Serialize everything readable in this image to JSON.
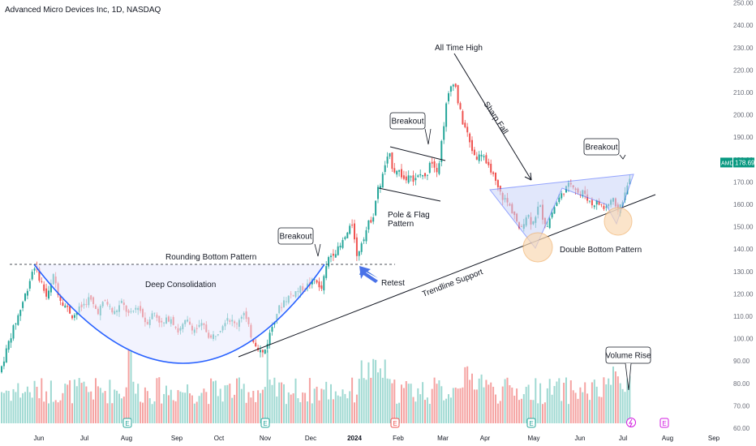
{
  "header": {
    "symbol_title": "Advanced Micro Devices Inc, 1D, NASDAQ"
  },
  "colors": {
    "up": "#26a69a",
    "down": "#ef5350",
    "vol_up": "#9fd9d2",
    "vol_down": "#f5a3a2",
    "neckline": "#1565c0",
    "curve": "#2962ff",
    "price_badge": "#089981",
    "earnings": "#26a69a",
    "earnings_future": "#d21ee0"
  },
  "chart_data": {
    "type": "candlestick",
    "title": "Advanced Micro Devices Inc, 1D, NASDAQ",
    "y_axis": {
      "ticks": [
        60,
        70,
        80,
        90,
        100,
        110,
        120,
        130,
        140,
        150,
        160,
        170,
        180,
        190,
        200,
        210,
        220,
        230,
        240,
        250
      ],
      "tick_labels": [
        "60.00",
        "70.00",
        "80.00",
        "90.00",
        "100.00",
        "110.00",
        "120.00",
        "130.00",
        "140.00",
        "150.00",
        "160.00",
        "170.00",
        "180.00",
        "190.00",
        "200.00",
        "210.00",
        "220.00",
        "230.00",
        "240.00",
        "250.00"
      ],
      "ylim": [
        57,
        251
      ]
    },
    "x_axis": {
      "labels": [
        "Jun",
        "Jul",
        "Aug",
        "Sep",
        "Oct",
        "Nov",
        "Dec",
        "2024",
        "Feb",
        "Mar",
        "Apr",
        "May",
        "Jun",
        "Jul",
        "Aug",
        "Sep"
      ]
    },
    "last_price": {
      "symbol": "AMD",
      "value": "178.69"
    },
    "price_path": [
      [
        0,
        85
      ],
      [
        12,
        100
      ],
      [
        24,
        112
      ],
      [
        35,
        124
      ],
      [
        42,
        133
      ],
      [
        50,
        126
      ],
      [
        58,
        118
      ],
      [
        66,
        128
      ],
      [
        74,
        118
      ],
      [
        82,
        114
      ],
      [
        90,
        110
      ],
      [
        100,
        114
      ],
      [
        110,
        118
      ],
      [
        120,
        112
      ],
      [
        130,
        117
      ],
      [
        140,
        111
      ],
      [
        150,
        116
      ],
      [
        160,
        110
      ],
      [
        170,
        115
      ],
      [
        180,
        107
      ],
      [
        190,
        112
      ],
      [
        200,
        106
      ],
      [
        210,
        110
      ],
      [
        220,
        103
      ],
      [
        230,
        108
      ],
      [
        240,
        104
      ],
      [
        250,
        106
      ],
      [
        260,
        100
      ],
      [
        270,
        104
      ],
      [
        280,
        110
      ],
      [
        290,
        106
      ],
      [
        300,
        112
      ],
      [
        310,
        101
      ],
      [
        320,
        95
      ],
      [
        325,
        93
      ],
      [
        330,
        99
      ],
      [
        340,
        111
      ],
      [
        350,
        117
      ],
      [
        360,
        120
      ],
      [
        370,
        122
      ],
      [
        380,
        124
      ],
      [
        390,
        127
      ],
      [
        395,
        120
      ],
      [
        400,
        128
      ],
      [
        405,
        136
      ],
      [
        412,
        139
      ],
      [
        418,
        140
      ],
      [
        425,
        145
      ],
      [
        430,
        148
      ],
      [
        435,
        152
      ],
      [
        440,
        136
      ],
      [
        445,
        143
      ],
      [
        450,
        147
      ],
      [
        455,
        152
      ],
      [
        460,
        155
      ],
      [
        465,
        166
      ],
      [
        470,
        170
      ],
      [
        475,
        178
      ],
      [
        480,
        182
      ],
      [
        485,
        175
      ],
      [
        490,
        176
      ],
      [
        495,
        173
      ],
      [
        500,
        170
      ],
      [
        505,
        176
      ],
      [
        510,
        170
      ],
      [
        515,
        172
      ],
      [
        520,
        174
      ],
      [
        525,
        171
      ],
      [
        530,
        180
      ],
      [
        535,
        178
      ],
      [
        540,
        175
      ],
      [
        545,
        190
      ],
      [
        550,
        204
      ],
      [
        555,
        212
      ],
      [
        560,
        216
      ],
      [
        565,
        205
      ],
      [
        570,
        197
      ],
      [
        575,
        193
      ],
      [
        580,
        186
      ],
      [
        585,
        182
      ],
      [
        590,
        181
      ],
      [
        595,
        184
      ],
      [
        600,
        176
      ],
      [
        605,
        176
      ],
      [
        610,
        170
      ],
      [
        615,
        166
      ],
      [
        620,
        163
      ],
      [
        625,
        161
      ],
      [
        630,
        158
      ],
      [
        635,
        155
      ],
      [
        640,
        148
      ],
      [
        645,
        152
      ],
      [
        650,
        156
      ],
      [
        655,
        152
      ],
      [
        660,
        155
      ],
      [
        665,
        160
      ],
      [
        670,
        153
      ],
      [
        675,
        151
      ],
      [
        680,
        156
      ],
      [
        685,
        160
      ],
      [
        690,
        163
      ],
      [
        695,
        166
      ],
      [
        700,
        168
      ],
      [
        705,
        170
      ],
      [
        710,
        167
      ],
      [
        715,
        164
      ],
      [
        720,
        166
      ],
      [
        725,
        162
      ],
      [
        730,
        160
      ],
      [
        735,
        161
      ],
      [
        740,
        160
      ],
      [
        745,
        158
      ],
      [
        750,
        160
      ],
      [
        755,
        163
      ],
      [
        760,
        156
      ],
      [
        765,
        160
      ],
      [
        770,
        164
      ],
      [
        775,
        170
      ],
      [
        779,
        178.69
      ]
    ],
    "volume_axis": {
      "min_px": 522,
      "max_px": 425
    },
    "earnings_markers": [
      "E",
      "E",
      "E",
      "E",
      "E"
    ]
  },
  "annotations": {
    "all_time_high": "All Time High",
    "breakout_1": "Breakout",
    "breakout_2": "Breakout",
    "breakout_3": "Breakout",
    "rounding_bottom": "Rounding Bottom Pattern",
    "deep_consolidation": "Deep Consolidation",
    "retest": "Retest",
    "pole_flag_line1": "Pole & Flag",
    "pole_flag_line2": "Pattern",
    "sharp_fall": "Sharp Fall",
    "double_bottom": "Double Bottom Pattern",
    "trendline_support": "Trendline Support",
    "volume_rise": "Volume Rise"
  }
}
